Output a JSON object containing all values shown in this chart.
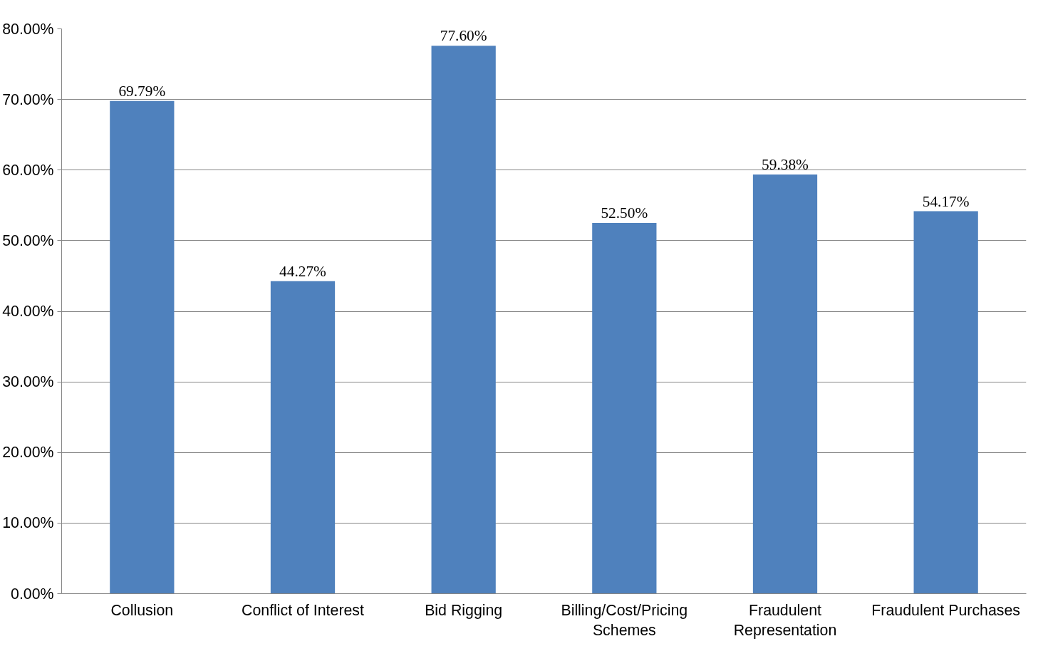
{
  "chart_data": {
    "type": "bar",
    "categories": [
      "Collusion",
      "Conflict of Interest",
      "Bid Rigging",
      "Billing/Cost/Pricing Schemes",
      "Fraudulent Representation",
      "Fraudulent Purchases"
    ],
    "values": [
      69.79,
      44.27,
      77.6,
      52.5,
      59.38,
      54.17
    ],
    "value_labels": [
      "69.79%",
      "44.27%",
      "77.60%",
      "52.50%",
      "59.38%",
      "54.17%"
    ],
    "color": "#4f81bd",
    "ylim": [
      0,
      80
    ],
    "yticks": [
      {
        "value": 0,
        "label": "0.00%"
      },
      {
        "value": 10,
        "label": "10.00%"
      },
      {
        "value": 20,
        "label": "20.00%"
      },
      {
        "value": 30,
        "label": "30.00%"
      },
      {
        "value": 40,
        "label": "40.00%"
      },
      {
        "value": 50,
        "label": "50.00%"
      },
      {
        "value": 60,
        "label": "60.00%"
      },
      {
        "value": 70,
        "label": "70.00%"
      },
      {
        "value": 80,
        "label": "80.00%"
      }
    ],
    "grid": "y"
  }
}
